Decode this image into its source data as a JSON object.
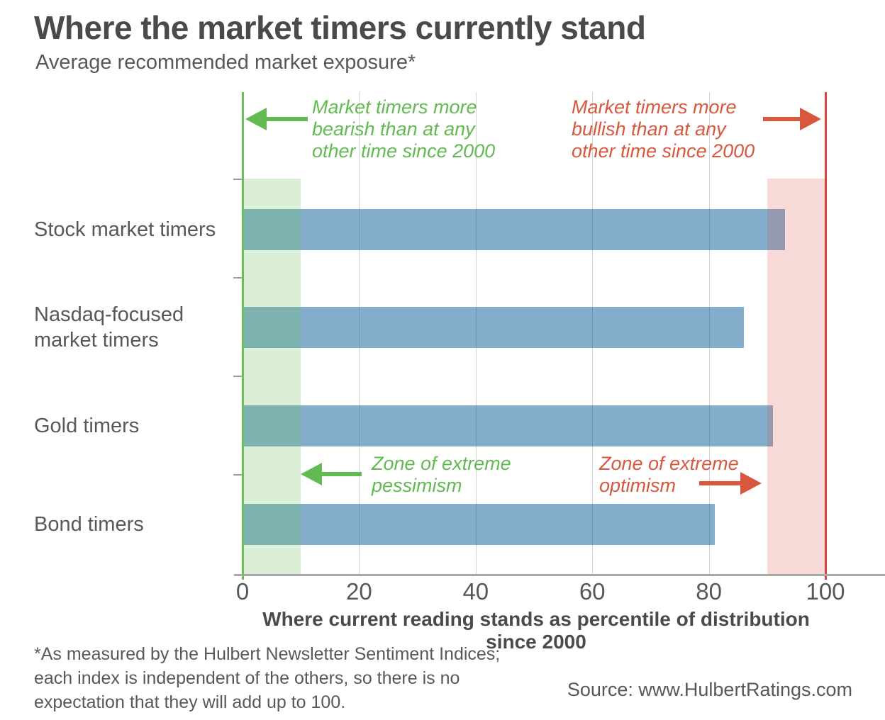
{
  "colors": {
    "green": "#63ba52",
    "green_line": "#6abe57",
    "red": "#d9573d",
    "red_line": "#d8463a",
    "bar": "#85aecd",
    "zone_green_fill": "rgba(106,190,87,0.25)",
    "zone_red_fill": "rgba(216,70,58,0.20)",
    "axis": "#a8a8a8",
    "text": "#55595c",
    "text_dark": "#4a4a4a"
  },
  "chart_data": {
    "type": "bar",
    "orientation": "horizontal",
    "title": "Where the market timers currently stand",
    "subtitle": "Average recommended market exposure*",
    "categories": [
      "Stock market timers",
      "Nasdaq-focused market timers",
      "Gold timers",
      "Bond timers"
    ],
    "values": [
      93,
      86,
      91,
      81
    ],
    "xlabel": "Where current reading stands as percentile of distribution since 2000",
    "xlim": [
      0,
      100
    ],
    "xticks": [
      0,
      20,
      40,
      60,
      80,
      100
    ],
    "grid": "vertical gridlines at 20/40/60/80",
    "zones": [
      {
        "id": "pessimism",
        "from": 0,
        "to": 10,
        "edge_at": 0
      },
      {
        "id": "optimism",
        "from": 90,
        "to": 100,
        "edge_at": 100
      }
    ],
    "annotations": {
      "bearish": {
        "lines": [
          "Market timers more",
          "bearish than at any",
          "other time since 2000"
        ],
        "arrow": "left"
      },
      "bullish": {
        "lines": [
          "Market timers more",
          "bullish than at any",
          "other time since 2000"
        ],
        "arrow": "right"
      },
      "pessimism": {
        "lines": [
          "Zone of extreme",
          "pessimism"
        ],
        "arrow": "left"
      },
      "optimism": {
        "lines": [
          "Zone of extreme",
          "optimism"
        ],
        "arrow": "right"
      }
    }
  },
  "footer": {
    "note_line1": "*As measured by the Hulbert Newsletter Sentiment Indices;",
    "note_line2": "each index is independent of the others, so there is no",
    "note_line3": "expectation that they will add up to 100.",
    "source": "Source: www.HulbertRatings.com"
  }
}
